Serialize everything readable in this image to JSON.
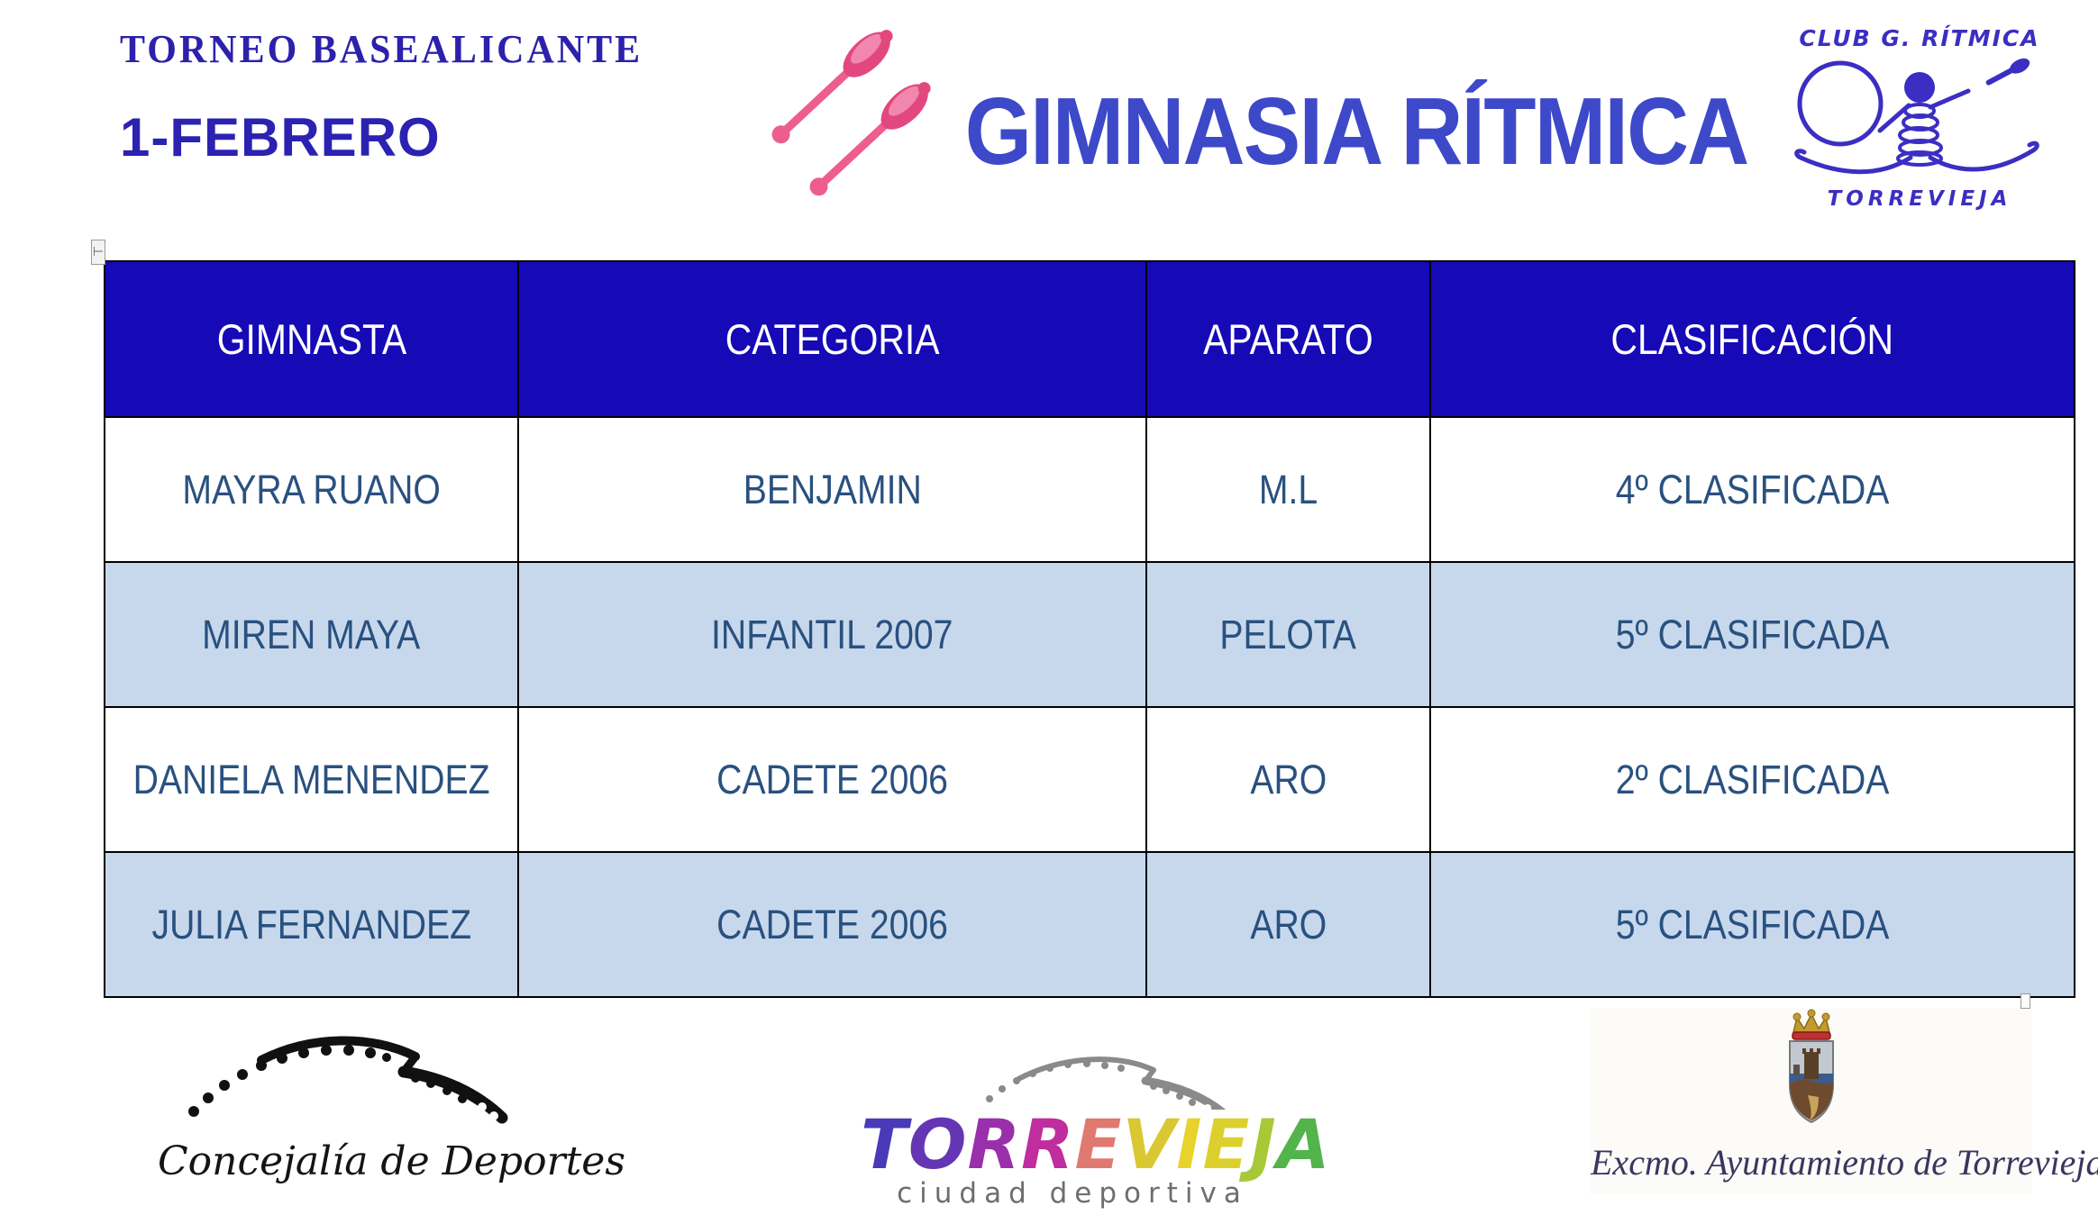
{
  "header": {
    "tournament": "TORNEO  BASEALICANTE",
    "date": "1-FEBRERO",
    "title": "GIMNASIA RÍTMICA"
  },
  "club_logo": {
    "top_text": "CLUB G. RÍTMICA",
    "bottom_text": "TORREVIEJA"
  },
  "table": {
    "headers": [
      "GIMNASTA",
      "CATEGORIA",
      "APARATO",
      "CLASIFICACIÓN"
    ],
    "rows": [
      [
        "MAYRA RUANO",
        "BENJAMIN",
        "M.L",
        "4º CLASIFICADA"
      ],
      [
        "MIREN MAYA",
        "INFANTIL 2007",
        "PELOTA",
        "5º CLASIFICADA"
      ],
      [
        "DANIELA MENENDEZ",
        "CADETE 2006",
        "ARO",
        "2º CLASIFICADA"
      ],
      [
        "JULIA FERNANDEZ",
        "CADETE 2006",
        "ARO",
        "5º CLASIFICADA"
      ]
    ]
  },
  "footer": {
    "concejalia": "Concejalía de Deportes",
    "torrevieja_word": "TORREVIEJA",
    "torrevieja_letter_colors": [
      "#4A3AB8",
      "#6436B4",
      "#9A2FAC",
      "#C02D9E",
      "#E0796F",
      "#D9C832",
      "#E8D22B",
      "#DCD02E",
      "#A8C838",
      "#52B44A"
    ],
    "ciudad_deportiva": "ciudad deportiva",
    "ayuntamiento": "Excmo. Ayuntamiento de Torrevieja"
  },
  "colors": {
    "table_header_bg": "#1609B6",
    "table_alt_row_bg": "#C7D8ED",
    "table_text": "#29517F",
    "title_blue": "#3D49C8",
    "deep_blue": "#2B21AC",
    "club_logo_blue": "#3B2EC2",
    "clubs_pink": "#ED5E8E"
  }
}
